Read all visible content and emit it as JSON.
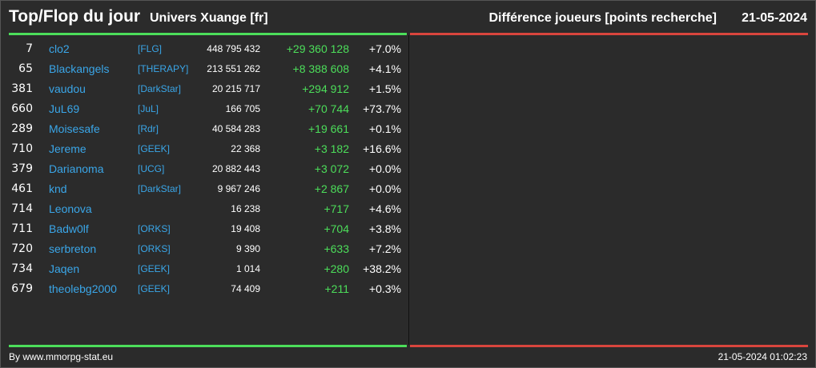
{
  "header": {
    "title": "Top/Flop du jour",
    "universe": "Univers Xuange [fr]",
    "metric": "Différence joueurs [points recherche]",
    "date": "21-05-2024"
  },
  "colors": {
    "background": "#2b2b2b",
    "top_accent": "#4cde5a",
    "flop_accent": "#d9453d",
    "player_link": "#3aa6e8",
    "gain_text": "#4cde5a"
  },
  "top": [
    {
      "rank": "7",
      "name": "clo2",
      "alliance": "[FLG]",
      "points": "448 795 432",
      "diff": "+29 360 128",
      "pct": "+7.0%"
    },
    {
      "rank": "65",
      "name": "Blackangels",
      "alliance": "[THERAPY]",
      "points": "213 551 262",
      "diff": "+8 388 608",
      "pct": "+4.1%"
    },
    {
      "rank": "381",
      "name": "vaudou",
      "alliance": "[DarkStar]",
      "points": "20 215 717",
      "diff": "+294 912",
      "pct": "+1.5%"
    },
    {
      "rank": "660",
      "name": "JuL69",
      "alliance": "[JuL]",
      "points": "166 705",
      "diff": "+70 744",
      "pct": "+73.7%"
    },
    {
      "rank": "289",
      "name": "Moisesafe",
      "alliance": "[Rdr]",
      "points": "40 584 283",
      "diff": "+19 661",
      "pct": "+0.1%"
    },
    {
      "rank": "710",
      "name": "Jereme",
      "alliance": "[GEEK]",
      "points": "22 368",
      "diff": "+3 182",
      "pct": "+16.6%"
    },
    {
      "rank": "379",
      "name": "Darianoma",
      "alliance": "[UCG]",
      "points": "20 882 443",
      "diff": "+3 072",
      "pct": "+0.0%"
    },
    {
      "rank": "461",
      "name": "knd",
      "alliance": "[DarkStar]",
      "points": "9 967 246",
      "diff": "+2 867",
      "pct": "+0.0%"
    },
    {
      "rank": "714",
      "name": "Leonova",
      "alliance": "",
      "points": "16 238",
      "diff": "+717",
      "pct": "+4.6%"
    },
    {
      "rank": "711",
      "name": "Badw0lf",
      "alliance": "[ORKS]",
      "points": "19 408",
      "diff": "+704",
      "pct": "+3.8%"
    },
    {
      "rank": "720",
      "name": "serbreton",
      "alliance": "[ORKS]",
      "points": "9 390",
      "diff": "+633",
      "pct": "+7.2%"
    },
    {
      "rank": "734",
      "name": "Jaqen",
      "alliance": "[GEEK]",
      "points": "1 014",
      "diff": "+280",
      "pct": "+38.2%"
    },
    {
      "rank": "679",
      "name": "theolebg2000",
      "alliance": "[GEEK]",
      "points": "74 409",
      "diff": "+211",
      "pct": "+0.3%"
    }
  ],
  "flop": [],
  "footer": {
    "credit": "By www.mmorpg-stat.eu",
    "generated": "21-05-2024 01:02:23"
  }
}
